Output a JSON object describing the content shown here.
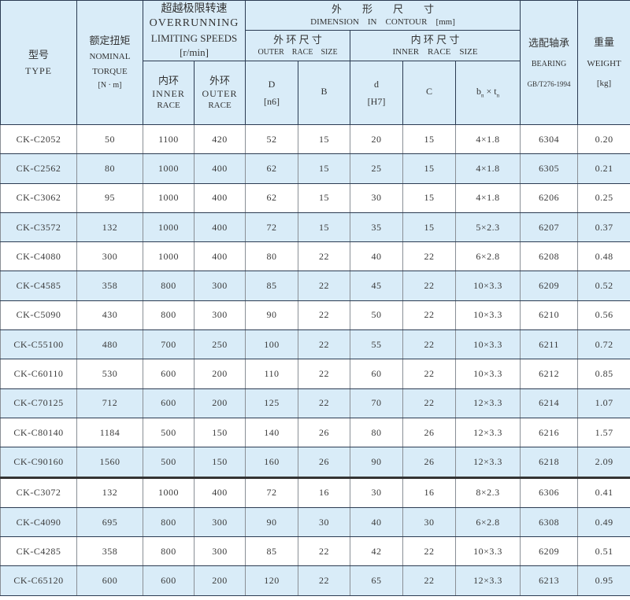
{
  "header": {
    "type": {
      "cn": "型号",
      "en": "TYPE"
    },
    "torque": {
      "cn": "额定扭矩",
      "en1": "NOMINAL",
      "en2": "TORQUE",
      "unit": "[N · m]"
    },
    "speed": {
      "cn": "超越极限转速",
      "en1": "OVERRUNNING",
      "en2": "LIMITING SPEEDS",
      "unit": "[r/min]"
    },
    "inner_race": {
      "cn": "内环",
      "en1": "INNER",
      "en2": "RACE"
    },
    "outer_race": {
      "cn": "外环",
      "en1": "OUTER",
      "en2": "RACE"
    },
    "dimension": {
      "cn": "外　　形　　尺　　寸",
      "en": "DIMENSION　IN　CONTOUR　[mm]"
    },
    "outer_size": {
      "cn": "外 环 尺 寸",
      "en": "OUTER　RACE　SIZE"
    },
    "inner_size": {
      "cn": "内 环 尺 寸",
      "en": "INNER　RACE　SIZE"
    },
    "D": {
      "label": "D",
      "tol": "[n6]"
    },
    "B": {
      "label": "B"
    },
    "d": {
      "label": "d",
      "tol": "[H7]"
    },
    "C": {
      "label": "C"
    },
    "bt": {
      "b": "b",
      "sub": "n",
      "x": " × ",
      "t": "t",
      "sub2": "n"
    },
    "bearing": {
      "cn": "选配轴承",
      "en": "BEARING",
      "std": "GB/T276-1994"
    },
    "weight": {
      "cn": "重量",
      "en": "WEIGHT",
      "unit": "[kg]"
    }
  },
  "rows": [
    [
      "CK-C2052",
      "50",
      "1100",
      "420",
      "52",
      "15",
      "20",
      "15",
      "4×1.8",
      "6304",
      "0.20"
    ],
    [
      "CK-C2562",
      "80",
      "1000",
      "400",
      "62",
      "15",
      "25",
      "15",
      "4×1.8",
      "6305",
      "0.21"
    ],
    [
      "CK-C3062",
      "95",
      "1000",
      "400",
      "62",
      "15",
      "30",
      "15",
      "4×1.8",
      "6206",
      "0.25"
    ],
    [
      "CK-C3572",
      "132",
      "1000",
      "400",
      "72",
      "15",
      "35",
      "15",
      "5×2.3",
      "6207",
      "0.37"
    ],
    [
      "CK-C4080",
      "300",
      "1000",
      "400",
      "80",
      "22",
      "40",
      "22",
      "6×2.8",
      "6208",
      "0.48"
    ],
    [
      "CK-C4585",
      "358",
      "800",
      "300",
      "85",
      "22",
      "45",
      "22",
      "10×3.3",
      "6209",
      "0.52"
    ],
    [
      "CK-C5090",
      "430",
      "800",
      "300",
      "90",
      "22",
      "50",
      "22",
      "10×3.3",
      "6210",
      "0.56"
    ],
    [
      "CK-C55100",
      "480",
      "700",
      "250",
      "100",
      "22",
      "55",
      "22",
      "10×3.3",
      "6211",
      "0.72"
    ],
    [
      "CK-C60110",
      "530",
      "600",
      "200",
      "110",
      "22",
      "60",
      "22",
      "10×3.3",
      "6212",
      "0.85"
    ],
    [
      "CK-C70125",
      "712",
      "600",
      "200",
      "125",
      "22",
      "70",
      "22",
      "12×3.3",
      "6214",
      "1.07"
    ],
    [
      "CK-C80140",
      "1184",
      "500",
      "150",
      "140",
      "26",
      "80",
      "26",
      "12×3.3",
      "6216",
      "1.57"
    ],
    [
      "CK-C90160",
      "1560",
      "500",
      "150",
      "160",
      "26",
      "90",
      "26",
      "12×3.3",
      "6218",
      "2.09"
    ],
    [
      "CK-C3072",
      "132",
      "1000",
      "400",
      "72",
      "16",
      "30",
      "16",
      "8×2.3",
      "6306",
      "0.41"
    ],
    [
      "CK-C4090",
      "695",
      "800",
      "300",
      "90",
      "30",
      "40",
      "30",
      "6×2.8",
      "6308",
      "0.49"
    ],
    [
      "CK-C4285",
      "358",
      "800",
      "300",
      "85",
      "22",
      "42",
      "22",
      "10×3.3",
      "6209",
      "0.51"
    ],
    [
      "CK-C65120",
      "600",
      "600",
      "200",
      "120",
      "22",
      "65",
      "22",
      "12×3.3",
      "6213",
      "0.95"
    ]
  ],
  "colors": {
    "header_bg": "#d9ecf8",
    "alt_row_bg": "#d9ecf8",
    "border": "#2b3b52"
  }
}
